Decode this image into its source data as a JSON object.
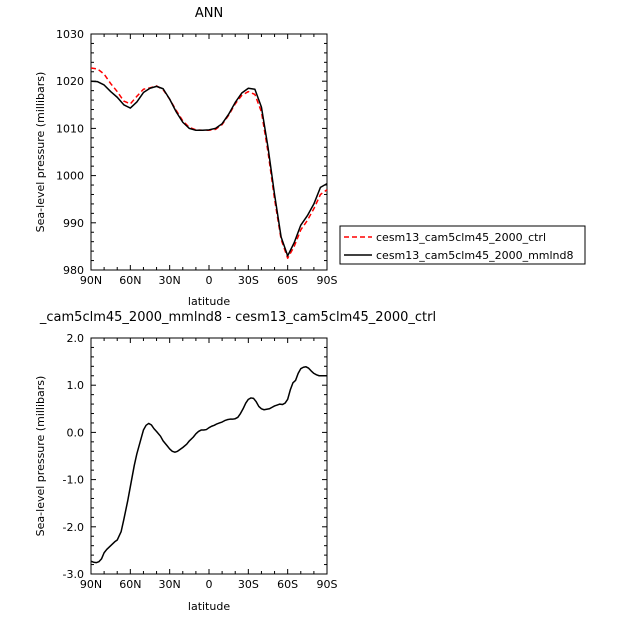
{
  "chart_data": [
    {
      "type": "line",
      "title": "ANN",
      "xlabel": "latitude",
      "ylabel": "Sea-level pressure (millibars)",
      "ylim": [
        980,
        1030
      ],
      "xlim": [
        90,
        -90
      ],
      "x_ticks": [
        90,
        60,
        30,
        0,
        -30,
        -60,
        -90
      ],
      "x_tick_labels": [
        "90N",
        "60N",
        "30N",
        "0",
        "30S",
        "60S",
        "90S"
      ],
      "y_ticks": [
        980,
        990,
        1000,
        1010,
        1020,
        1030
      ],
      "y_tick_labels": [
        "980",
        "990",
        "1000",
        "1010",
        "1020",
        "1030"
      ],
      "grid": false,
      "legend_position": "right",
      "x": [
        90,
        85,
        80,
        75,
        70,
        65,
        60,
        55,
        50,
        45,
        40,
        35,
        30,
        25,
        20,
        15,
        10,
        5,
        0,
        -5,
        -10,
        -15,
        -20,
        -25,
        -30,
        -35,
        -40,
        -45,
        -50,
        -55,
        -60,
        -65,
        -70,
        -75,
        -80,
        -85,
        -90
      ],
      "series": [
        {
          "name": "cesm13_cam5clm45_2000_ctrl",
          "color": "#ff0000",
          "dash": "dashed",
          "values": [
            1022.8,
            1022.6,
            1021.5,
            1019.5,
            1017.8,
            1015.8,
            1015.2,
            1016.8,
            1018.3,
            1018.6,
            1019.0,
            1018.2,
            1016.2,
            1013.8,
            1011.6,
            1010.2,
            1009.7,
            1009.6,
            1009.6,
            1009.8,
            1010.8,
            1012.8,
            1015.2,
            1017.0,
            1017.8,
            1017.2,
            1013.5,
            1005.0,
            995.0,
            986.5,
            982.5,
            985.0,
            988.5,
            990.5,
            993.0,
            996.0,
            997.0
          ]
        },
        {
          "name": "cesm13_cam5clm45_2000_mmlnd8",
          "color": "#000000",
          "dash": "solid",
          "values": [
            1020.0,
            1019.9,
            1019.2,
            1017.8,
            1016.6,
            1015.0,
            1014.3,
            1015.6,
            1017.6,
            1018.5,
            1018.9,
            1018.4,
            1016.2,
            1013.5,
            1011.3,
            1010.0,
            1009.6,
            1009.6,
            1009.7,
            1010.0,
            1011.0,
            1013.0,
            1015.5,
            1017.5,
            1018.5,
            1018.3,
            1014.5,
            1006.0,
            996.0,
            987.0,
            983.0,
            985.8,
            989.5,
            991.5,
            994.0,
            997.5,
            998.3
          ]
        }
      ]
    },
    {
      "type": "line",
      "title": "_cam5clm45_2000_mmlnd8 - cesm13_cam5clm45_2000_ctrl",
      "xlabel": "latitude",
      "ylabel": "Sea-level pressure (millibars)",
      "ylim": [
        -3.0,
        2.0
      ],
      "xlim": [
        90,
        -90
      ],
      "x_ticks": [
        90,
        60,
        30,
        0,
        -30,
        -60,
        -90
      ],
      "x_tick_labels": [
        "90N",
        "60N",
        "30N",
        "0",
        "30S",
        "60S",
        "90S"
      ],
      "y_ticks": [
        -3.0,
        -2.0,
        -1.0,
        0.0,
        1.0,
        2.0
      ],
      "y_tick_labels": [
        "-3.0",
        "-2.0",
        "-1.0",
        "0.0",
        "1.0",
        "2.0"
      ],
      "grid": false,
      "x": [
        90,
        88,
        86,
        84,
        82,
        80,
        78,
        75,
        72,
        70,
        67,
        65,
        62,
        60,
        57,
        55,
        52,
        50,
        48,
        46,
        44,
        42,
        40,
        37,
        35,
        32,
        30,
        28,
        26,
        24,
        22,
        20,
        17,
        15,
        12,
        10,
        8,
        6,
        4,
        2,
        0,
        -2,
        -4,
        -6,
        -8,
        -10,
        -12,
        -14,
        -16,
        -18,
        -20,
        -22,
        -24,
        -26,
        -28,
        -30,
        -32,
        -34,
        -36,
        -38,
        -40,
        -42,
        -44,
        -46,
        -48,
        -50,
        -52,
        -54,
        -56,
        -58,
        -60,
        -62,
        -64,
        -66,
        -68,
        -70,
        -72,
        -74,
        -76,
        -78,
        -80,
        -82,
        -84,
        -86,
        -88,
        -90
      ],
      "series": [
        {
          "name": "",
          "color": "#000000",
          "dash": "solid",
          "values": [
            -2.73,
            -2.75,
            -2.76,
            -2.74,
            -2.68,
            -2.55,
            -2.48,
            -2.4,
            -2.32,
            -2.28,
            -2.1,
            -1.85,
            -1.45,
            -1.15,
            -0.7,
            -0.45,
            -0.15,
            0.05,
            0.15,
            0.19,
            0.16,
            0.08,
            0.02,
            -0.08,
            -0.18,
            -0.28,
            -0.35,
            -0.4,
            -0.42,
            -0.4,
            -0.36,
            -0.32,
            -0.25,
            -0.18,
            -0.1,
            -0.03,
            0.02,
            0.05,
            0.05,
            0.06,
            0.1,
            0.13,
            0.15,
            0.18,
            0.2,
            0.22,
            0.25,
            0.27,
            0.28,
            0.28,
            0.29,
            0.32,
            0.4,
            0.5,
            0.62,
            0.7,
            0.73,
            0.72,
            0.65,
            0.55,
            0.5,
            0.48,
            0.49,
            0.5,
            0.53,
            0.56,
            0.58,
            0.6,
            0.59,
            0.62,
            0.7,
            0.9,
            1.05,
            1.1,
            1.25,
            1.35,
            1.38,
            1.39,
            1.36,
            1.3,
            1.25,
            1.22,
            1.2,
            1.2,
            1.2,
            1.2
          ]
        }
      ]
    }
  ]
}
